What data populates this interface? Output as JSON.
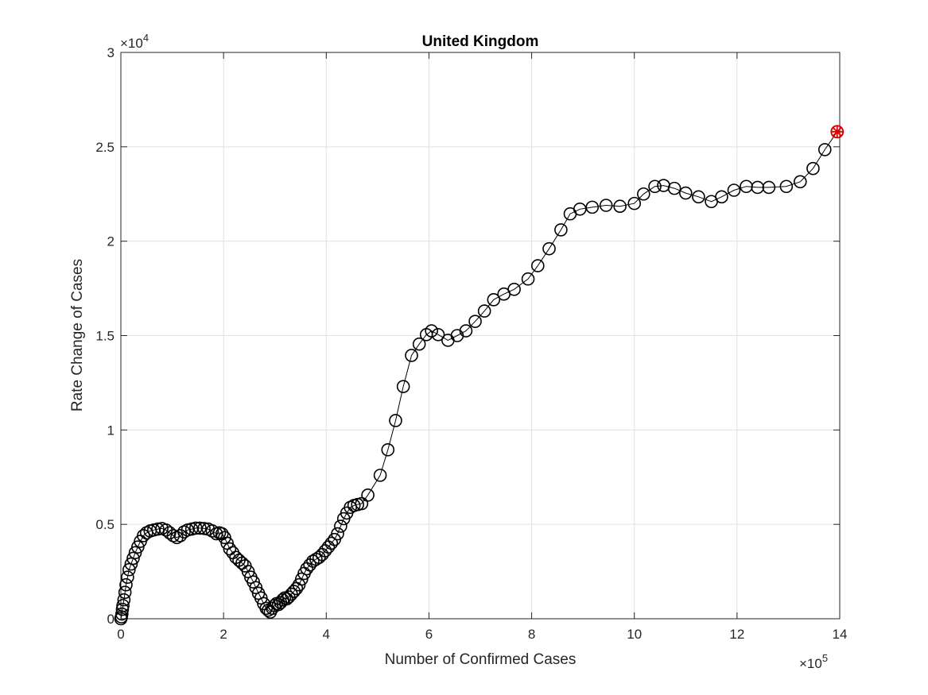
{
  "chart_data": {
    "type": "line",
    "title": "United Kingdom",
    "xlabel": "Number of Confirmed Cases",
    "ylabel": "Rate Change of Cases",
    "x_exponent_label": "×10",
    "x_exponent_power": "5",
    "y_exponent_label": "×10",
    "y_exponent_power": "4",
    "xlim": [
      0,
      1400000
    ],
    "ylim": [
      0,
      30000
    ],
    "x_ticks": [
      0,
      200000,
      400000,
      600000,
      800000,
      1000000,
      1200000,
      1400000
    ],
    "x_tick_labels": [
      "0",
      "2",
      "4",
      "6",
      "8",
      "10",
      "12",
      "14"
    ],
    "y_ticks": [
      0,
      5000,
      10000,
      15000,
      20000,
      25000,
      30000
    ],
    "y_tick_labels": [
      "0",
      "0.5",
      "1",
      "1.5",
      "2",
      "2.5",
      "3"
    ],
    "grid": true,
    "marker": "open-circle",
    "line_color": "#000000",
    "highlight_color": "#e00000",
    "highlight_point": {
      "x": 1395000,
      "y": 25800
    },
    "series": [
      {
        "x": [
          0,
          1000,
          2000,
          3000,
          4000,
          6000,
          8000,
          10000,
          13000,
          16000,
          20000,
          24000,
          28000,
          33000,
          38000,
          44000,
          50000,
          57000,
          64000,
          72000,
          80000,
          88000,
          95000,
          102000,
          109000,
          116000,
          123000,
          130000,
          138000,
          146000,
          154000,
          162000,
          170000,
          178000,
          186000,
          192000,
          197000,
          202000,
          207000,
          212000,
          218000,
          224000,
          230000,
          236000,
          242000,
          248000,
          253000,
          258000,
          263000,
          268000,
          273000,
          278000,
          283000,
          287000,
          291000,
          295000,
          299000,
          303000,
          307000,
          311000,
          315000,
          319000,
          323000,
          327000,
          332000,
          337000,
          342000,
          347000,
          352000,
          357000,
          362000,
          368000,
          374000,
          380000,
          386000,
          392000,
          398000,
          404000,
          410000,
          416000,
          422000,
          428000,
          434000,
          440000,
          447000,
          454000,
          461000,
          469000,
          481000,
          505000,
          520000,
          535000,
          550000,
          566000,
          581000,
          595000,
          605000,
          618000,
          637000,
          655000,
          672000,
          690000,
          708000,
          726000,
          746000,
          766000,
          793000,
          812000,
          834000,
          857000,
          875000,
          894000,
          918000,
          945000,
          972000,
          1000000,
          1018000,
          1040000,
          1057000,
          1078000,
          1100000,
          1125000,
          1150000,
          1170000,
          1194000,
          1218000,
          1240000,
          1262000,
          1296000,
          1323000,
          1348000,
          1371000,
          1395000
        ],
        "y": [
          0,
          100,
          250,
          500,
          700,
          1000,
          1400,
          1800,
          2200,
          2600,
          2900,
          3200,
          3500,
          3800,
          4100,
          4400,
          4550,
          4650,
          4700,
          4750,
          4780,
          4700,
          4550,
          4400,
          4300,
          4400,
          4600,
          4700,
          4750,
          4800,
          4800,
          4780,
          4750,
          4650,
          4500,
          4550,
          4500,
          4300,
          4000,
          3700,
          3500,
          3250,
          3100,
          2950,
          2800,
          2500,
          2200,
          1950,
          1650,
          1350,
          1100,
          800,
          550,
          450,
          350,
          550,
          700,
          800,
          750,
          850,
          1000,
          1100,
          1050,
          1150,
          1300,
          1450,
          1600,
          1800,
          2100,
          2400,
          2650,
          2850,
          3050,
          3150,
          3250,
          3400,
          3600,
          3800,
          4000,
          4200,
          4500,
          4900,
          5300,
          5600,
          5900,
          6000,
          6050,
          6100,
          6550,
          7600,
          8950,
          10500,
          12300,
          13950,
          14550,
          15050,
          15250,
          15050,
          14750,
          15000,
          15250,
          15750,
          16300,
          16900,
          17200,
          17450,
          18000,
          18700,
          19600,
          20600,
          21450,
          21700,
          21800,
          21900,
          21850,
          22000,
          22500,
          22900,
          22950,
          22800,
          22550,
          22350,
          22100,
          22350,
          22700,
          22900,
          22850,
          22850,
          22900,
          23150,
          23850,
          24850,
          25800
        ]
      }
    ]
  }
}
